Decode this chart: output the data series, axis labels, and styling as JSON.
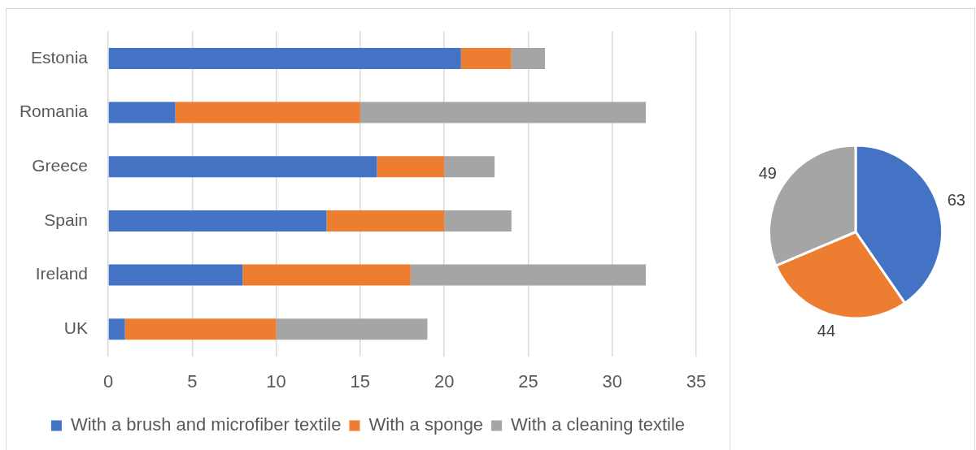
{
  "chart_data": [
    {
      "type": "bar",
      "orientation": "horizontal",
      "stacked": true,
      "categories": [
        "Estonia",
        "Romania",
        "Greece",
        "Spain",
        "Ireland",
        "UK"
      ],
      "series": [
        {
          "name": "With a brush and microfiber textile",
          "color": "#4472c4",
          "values": [
            21,
            4,
            16,
            13,
            8,
            1
          ]
        },
        {
          "name": "With a sponge",
          "color": "#ed7d31",
          "values": [
            3,
            11,
            4,
            7,
            10,
            9
          ]
        },
        {
          "name": "With a cleaning textile",
          "color": "#a5a5a5",
          "values": [
            2,
            17,
            3,
            4,
            14,
            9
          ]
        }
      ],
      "xlim": [
        0,
        35
      ],
      "xticks": [
        0,
        5,
        10,
        15,
        20,
        25,
        30,
        35
      ],
      "grid": "x",
      "legend": "bottom"
    },
    {
      "type": "pie",
      "categories": [
        null,
        null,
        null
      ],
      "values": [
        63,
        44,
        49
      ],
      "colors": [
        "#4472c4",
        "#ed7d31",
        "#a5a5a5"
      ],
      "data_labels": true
    }
  ]
}
